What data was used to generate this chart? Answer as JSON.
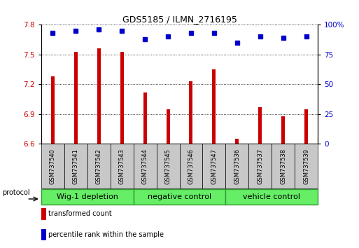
{
  "title": "GDS5185 / ILMN_2716195",
  "samples": [
    "GSM737540",
    "GSM737541",
    "GSM737542",
    "GSM737543",
    "GSM737544",
    "GSM737545",
    "GSM737546",
    "GSM737547",
    "GSM737536",
    "GSM737537",
    "GSM737538",
    "GSM737539"
  ],
  "transformed_counts": [
    7.28,
    7.53,
    7.56,
    7.53,
    7.12,
    6.95,
    7.23,
    7.35,
    6.65,
    6.97,
    6.88,
    6.95
  ],
  "percentile_ranks": [
    93,
    95,
    96,
    95,
    88,
    90,
    93,
    93,
    85,
    90,
    89,
    90
  ],
  "group_defs": [
    {
      "start": 0,
      "end": 4,
      "label": "Wig-1 depletion"
    },
    {
      "start": 4,
      "end": 8,
      "label": "negative control"
    },
    {
      "start": 8,
      "end": 12,
      "label": "vehicle control"
    }
  ],
  "ylim_left": [
    6.6,
    7.8
  ],
  "ylim_right": [
    0,
    100
  ],
  "yticks_left": [
    6.6,
    6.9,
    7.2,
    7.5,
    7.8
  ],
  "ytick_labels_left": [
    "6.6",
    "6.9",
    "7.2",
    "7.5",
    "7.8"
  ],
  "yticks_right": [
    0,
    25,
    50,
    75,
    100
  ],
  "ytick_labels_right": [
    "0",
    "25",
    "50",
    "75",
    "100%"
  ],
  "bar_color": "#cc0000",
  "dot_color": "#0000cc",
  "bar_width": 0.15,
  "tick_color_left": "#cc0000",
  "tick_color_right": "#0000cc",
  "sample_box_color": "#c8c8c8",
  "group_color": "#66ee66",
  "group_border_color": "#339933",
  "legend_items": [
    {
      "color": "#cc0000",
      "label": "transformed count"
    },
    {
      "color": "#0000cc",
      "label": "percentile rank within the sample"
    }
  ],
  "dot_size": 4,
  "title_fontsize": 9,
  "tick_fontsize": 7.5,
  "sample_fontsize": 6,
  "group_fontsize": 8,
  "legend_fontsize": 7,
  "protocol_fontsize": 7
}
